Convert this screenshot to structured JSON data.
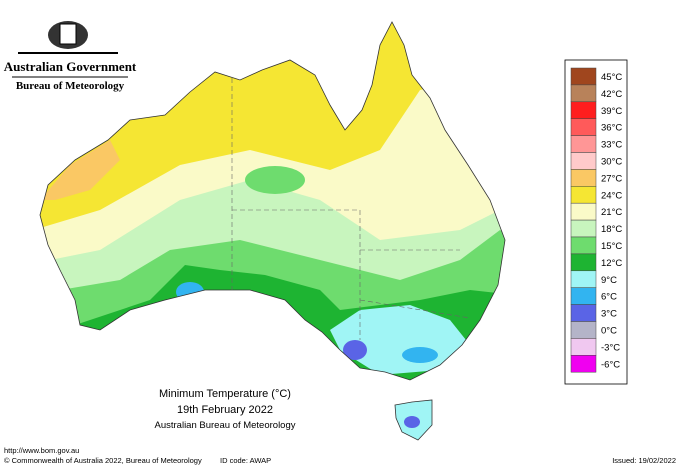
{
  "header": {
    "government": "Australian Government",
    "bureau": "Bureau of Meteorology"
  },
  "map": {
    "title": "Minimum Temperature (°C)",
    "date": "19th February 2022",
    "source": "Australian Bureau of Meteorology"
  },
  "legend": [
    {
      "label": "45°C",
      "color": "#a0461e"
    },
    {
      "label": "42°C",
      "color": "#b8825a"
    },
    {
      "label": "39°C",
      "color": "#ff1e1e"
    },
    {
      "label": "36°C",
      "color": "#ff5a5a"
    },
    {
      "label": "33°C",
      "color": "#ff9696"
    },
    {
      "label": "30°C",
      "color": "#ffcaca"
    },
    {
      "label": "27°C",
      "color": "#fac864"
    },
    {
      "label": "24°C",
      "color": "#f5e633"
    },
    {
      "label": "21°C",
      "color": "#fafac8"
    },
    {
      "label": "18°C",
      "color": "#c8f5be"
    },
    {
      "label": "15°C",
      "color": "#6edc6e"
    },
    {
      "label": "12°C",
      "color": "#1eb432"
    },
    {
      "label": "9°C",
      "color": "#a0f5f5"
    },
    {
      "label": "6°C",
      "color": "#32b4f0"
    },
    {
      "label": "3°C",
      "color": "#5a64e6"
    },
    {
      "label": "0°C",
      "color": "#b4b4c8"
    },
    {
      "label": "-3°C",
      "color": "#f0c8f0"
    },
    {
      "label": "-6°C",
      "color": "#f000f0"
    }
  ],
  "footer": {
    "url": "http://www.bom.gov.au",
    "copyright": "© Commonwealth of Australia 2022, Bureau of Meteorology",
    "id_code": "ID code: AWAP",
    "issued": "Issued: 19/02/2022"
  }
}
